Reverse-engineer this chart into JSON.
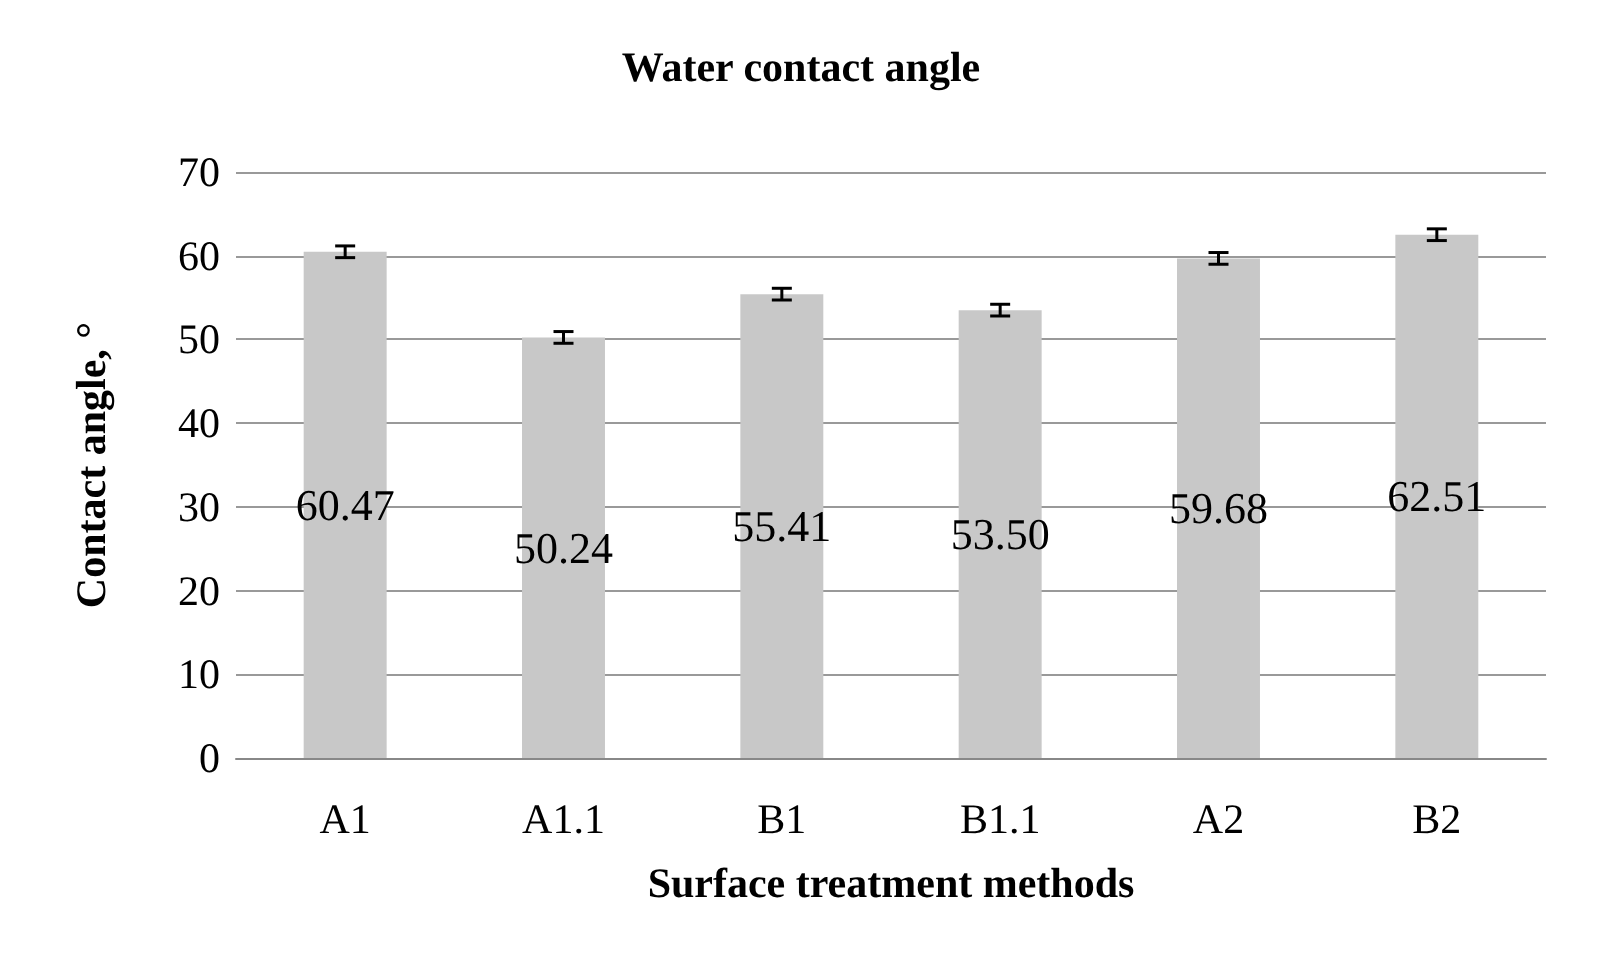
{
  "chart_data": {
    "type": "bar",
    "title": "Water contact angle",
    "xlabel": "Surface treatment methods",
    "ylabel": "Contact angle, °",
    "categories": [
      "A1",
      "A1.1",
      "B1",
      "B1.1",
      "A2",
      "B2"
    ],
    "values": [
      60.47,
      50.24,
      55.41,
      53.5,
      59.68,
      62.51
    ],
    "value_labels": [
      "60.47",
      "50.24",
      "55.41",
      "53.50",
      "59.68",
      "62.51"
    ],
    "errors": [
      0.7,
      0.7,
      0.7,
      0.7,
      0.7,
      0.7
    ],
    "color": "#c8c8c8",
    "ylim": [
      0,
      70
    ],
    "yticks": [
      0,
      10,
      20,
      30,
      40,
      50,
      60,
      70
    ],
    "grid": "y"
  }
}
